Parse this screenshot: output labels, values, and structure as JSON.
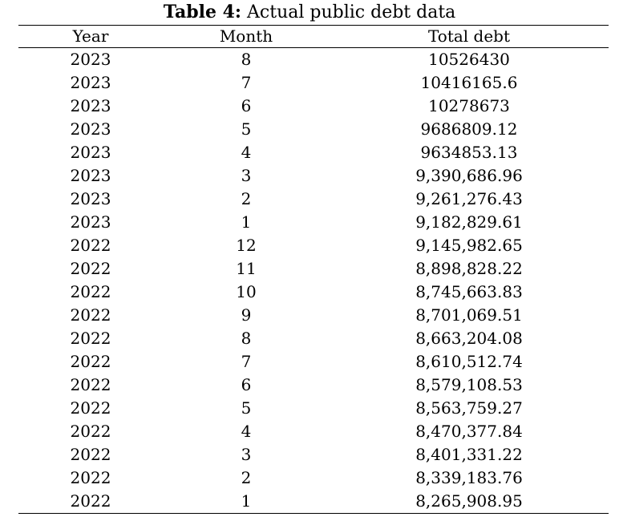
{
  "caption": {
    "label": "Table 4:",
    "text": " Actual public debt data"
  },
  "table": {
    "headers": {
      "year": "Year",
      "month": "Month",
      "total_debt": "Total debt"
    },
    "rows": [
      {
        "year": "2023",
        "month": "8",
        "total_debt": "10526430"
      },
      {
        "year": "2023",
        "month": "7",
        "total_debt": "10416165.6"
      },
      {
        "year": "2023",
        "month": "6",
        "total_debt": "10278673"
      },
      {
        "year": "2023",
        "month": "5",
        "total_debt": "9686809.12"
      },
      {
        "year": "2023",
        "month": "4",
        "total_debt": "9634853.13"
      },
      {
        "year": "2023",
        "month": "3",
        "total_debt": "9,390,686.96"
      },
      {
        "year": "2023",
        "month": "2",
        "total_debt": "9,261,276.43"
      },
      {
        "year": "2023",
        "month": "1",
        "total_debt": "9,182,829.61"
      },
      {
        "year": "2022",
        "month": "12",
        "total_debt": "9,145,982.65"
      },
      {
        "year": "2022",
        "month": "11",
        "total_debt": "8,898,828.22"
      },
      {
        "year": "2022",
        "month": "10",
        "total_debt": "8,745,663.83"
      },
      {
        "year": "2022",
        "month": "9",
        "total_debt": "8,701,069.51"
      },
      {
        "year": "2022",
        "month": "8",
        "total_debt": "8,663,204.08"
      },
      {
        "year": "2022",
        "month": "7",
        "total_debt": "8,610,512.74"
      },
      {
        "year": "2022",
        "month": "6",
        "total_debt": "8,579,108.53"
      },
      {
        "year": "2022",
        "month": "5",
        "total_debt": "8,563,759.27"
      },
      {
        "year": "2022",
        "month": "4",
        "total_debt": "8,470,377.84"
      },
      {
        "year": "2022",
        "month": "3",
        "total_debt": "8,401,331.22"
      },
      {
        "year": "2022",
        "month": "2",
        "total_debt": "8,339,183.76"
      },
      {
        "year": "2022",
        "month": "1",
        "total_debt": "8,265,908.95"
      }
    ]
  }
}
